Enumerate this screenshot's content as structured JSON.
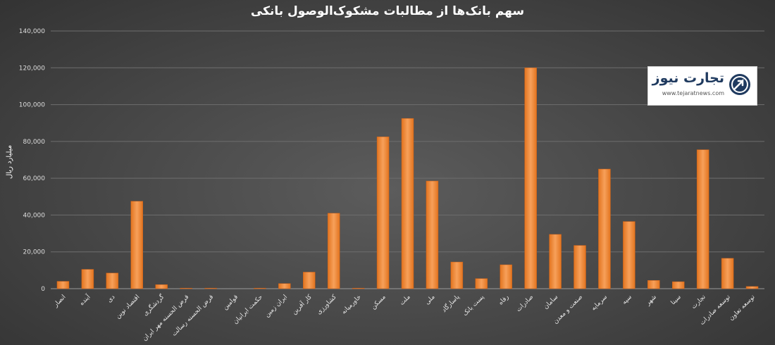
{
  "chart_data": {
    "type": "bar",
    "title": "سهم بانک‌ها از مطالبات مشکوک‌الوصول بانکی",
    "ylabel": "میلیارد ریال",
    "xlabel": "",
    "ylim": [
      0,
      140000
    ],
    "yticks": [
      "0",
      "20,000",
      "40,000",
      "60,000",
      "80,000",
      "100,000",
      "120,000",
      "140,000"
    ],
    "categories": [
      "انصار",
      "آینده",
      "دی",
      "اقتصاد نوین",
      "گردشگری",
      "قرض الحسنه مهر ایران",
      "قرض الحسنه رسالت",
      "قوامین",
      "حکمت ایرانیان",
      "ایران زمین",
      "کار آفرین",
      "کشاورزی",
      "خاورمیانه",
      "مسکن",
      "ملت",
      "ملی",
      "پاسارگاد",
      "پست بانک",
      "رفاه",
      "صادرات",
      "سامان",
      "صنعت و معدن",
      "سرمایه",
      "سپه",
      "شهر",
      "سینا",
      "تجارت",
      "توسعه صادرات",
      "توسعه تعاون"
    ],
    "values": [
      4000,
      10500,
      8500,
      47500,
      2200,
      300,
      300,
      0,
      300,
      2800,
      9000,
      41000,
      300,
      82500,
      92500,
      58500,
      14500,
      5500,
      13000,
      120000,
      29500,
      23500,
      65000,
      36500,
      4500,
      3800,
      75500,
      16500,
      1200
    ],
    "bar_color": "#f28a3c",
    "grid": true,
    "legend": "none"
  },
  "logo": {
    "name": "تجارت نیوز",
    "url": "www.tejaratnews.com",
    "colors": {
      "primary": "#1f3a5f",
      "accent": "#e8741e"
    }
  }
}
